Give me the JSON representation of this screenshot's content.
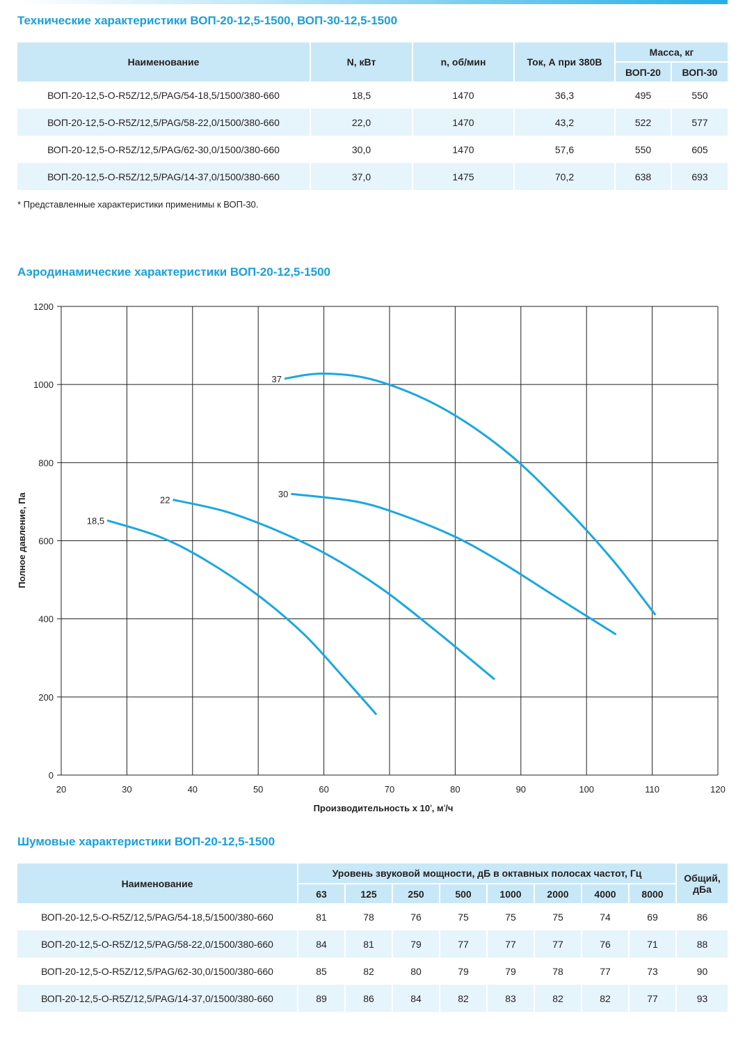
{
  "tech": {
    "title": "Технические характеристики ВОП-20-12,5-1500, ВОП-30-12,5-1500",
    "headers": {
      "name": "Наименование",
      "power": "N, кВт",
      "rpm": "n, об/мин",
      "current": "Ток, А при 380В",
      "mass": "Масса, кг",
      "mass20": "ВОП-20",
      "mass30": "ВОП-30"
    },
    "rows": [
      [
        "ВОП-20-12,5-О-R5Z/12,5/PAG/54-18,5/1500/380-660",
        "18,5",
        "1470",
        "36,3",
        "495",
        "550"
      ],
      [
        "ВОП-20-12,5-О-R5Z/12,5/PAG/58-22,0/1500/380-660",
        "22,0",
        "1470",
        "43,2",
        "522",
        "577"
      ],
      [
        "ВОП-20-12,5-О-R5Z/12,5/PAG/62-30,0/1500/380-660",
        "30,0",
        "1470",
        "57,6",
        "550",
        "605"
      ],
      [
        "ВОП-20-12,5-О-R5Z/12,5/PAG/14-37,0/1500/380-660",
        "37,0",
        "1475",
        "70,2",
        "638",
        "693"
      ]
    ],
    "footnote": "* Представленные характеристики применимы к ВОП-30."
  },
  "aero": {
    "title": "Аэродинамические характеристики ВОП-20-12,5-1500"
  },
  "chart_data": {
    "type": "line",
    "xlabel": "Производительность х 10³, м³/ч",
    "ylabel": "Полное давление, Па",
    "xlim": [
      20,
      120
    ],
    "ylim": [
      0,
      1200
    ],
    "xticks": [
      20,
      30,
      40,
      50,
      60,
      70,
      80,
      90,
      100,
      110,
      120
    ],
    "yticks": [
      0,
      200,
      400,
      600,
      800,
      1000,
      1200
    ],
    "grid": true,
    "line_color": "#1aa7e1",
    "series": [
      {
        "name": "18,5",
        "x": [
          27,
          35,
          42,
          50,
          57,
          63,
          68
        ],
        "y": [
          652,
          610,
          550,
          460,
          360,
          250,
          155
        ]
      },
      {
        "name": "22",
        "x": [
          37,
          45,
          53,
          61,
          69,
          77,
          86
        ],
        "y": [
          705,
          675,
          625,
          560,
          475,
          370,
          245
        ]
      },
      {
        "name": "30",
        "x": [
          55,
          65,
          72,
          80,
          87,
          95,
          104.5
        ],
        "y": [
          720,
          700,
          665,
          610,
          545,
          460,
          360
        ]
      },
      {
        "name": "37",
        "x": [
          54,
          60,
          68,
          78,
          88,
          97,
          104,
          110.5
        ],
        "y": [
          1015,
          1028,
          1010,
          940,
          825,
          680,
          550,
          410
        ]
      }
    ]
  },
  "noise": {
    "title": "Шумовые характеристики ВОП-20-12,5-1500",
    "headers": {
      "name": "Наименование",
      "band": "Уровень звуковой мощности, дБ в октавных полосах частот, Гц",
      "total": "Общий, дБа",
      "freqs": [
        "63",
        "125",
        "250",
        "500",
        "1000",
        "2000",
        "4000",
        "8000"
      ]
    },
    "rows": [
      [
        "ВОП-20-12,5-О-R5Z/12,5/PAG/54-18,5/1500/380-660",
        "81",
        "78",
        "76",
        "75",
        "75",
        "75",
        "74",
        "69",
        "86"
      ],
      [
        "ВОП-20-12,5-О-R5Z/12,5/PAG/58-22,0/1500/380-660",
        "84",
        "81",
        "79",
        "77",
        "77",
        "77",
        "76",
        "71",
        "88"
      ],
      [
        "ВОП-20-12,5-О-R5Z/12,5/PAG/62-30,0/1500/380-660",
        "85",
        "82",
        "80",
        "79",
        "79",
        "78",
        "77",
        "73",
        "90"
      ],
      [
        "ВОП-20-12,5-О-R5Z/12,5/PAG/14-37,0/1500/380-660",
        "89",
        "86",
        "84",
        "82",
        "83",
        "82",
        "82",
        "77",
        "93"
      ]
    ]
  }
}
